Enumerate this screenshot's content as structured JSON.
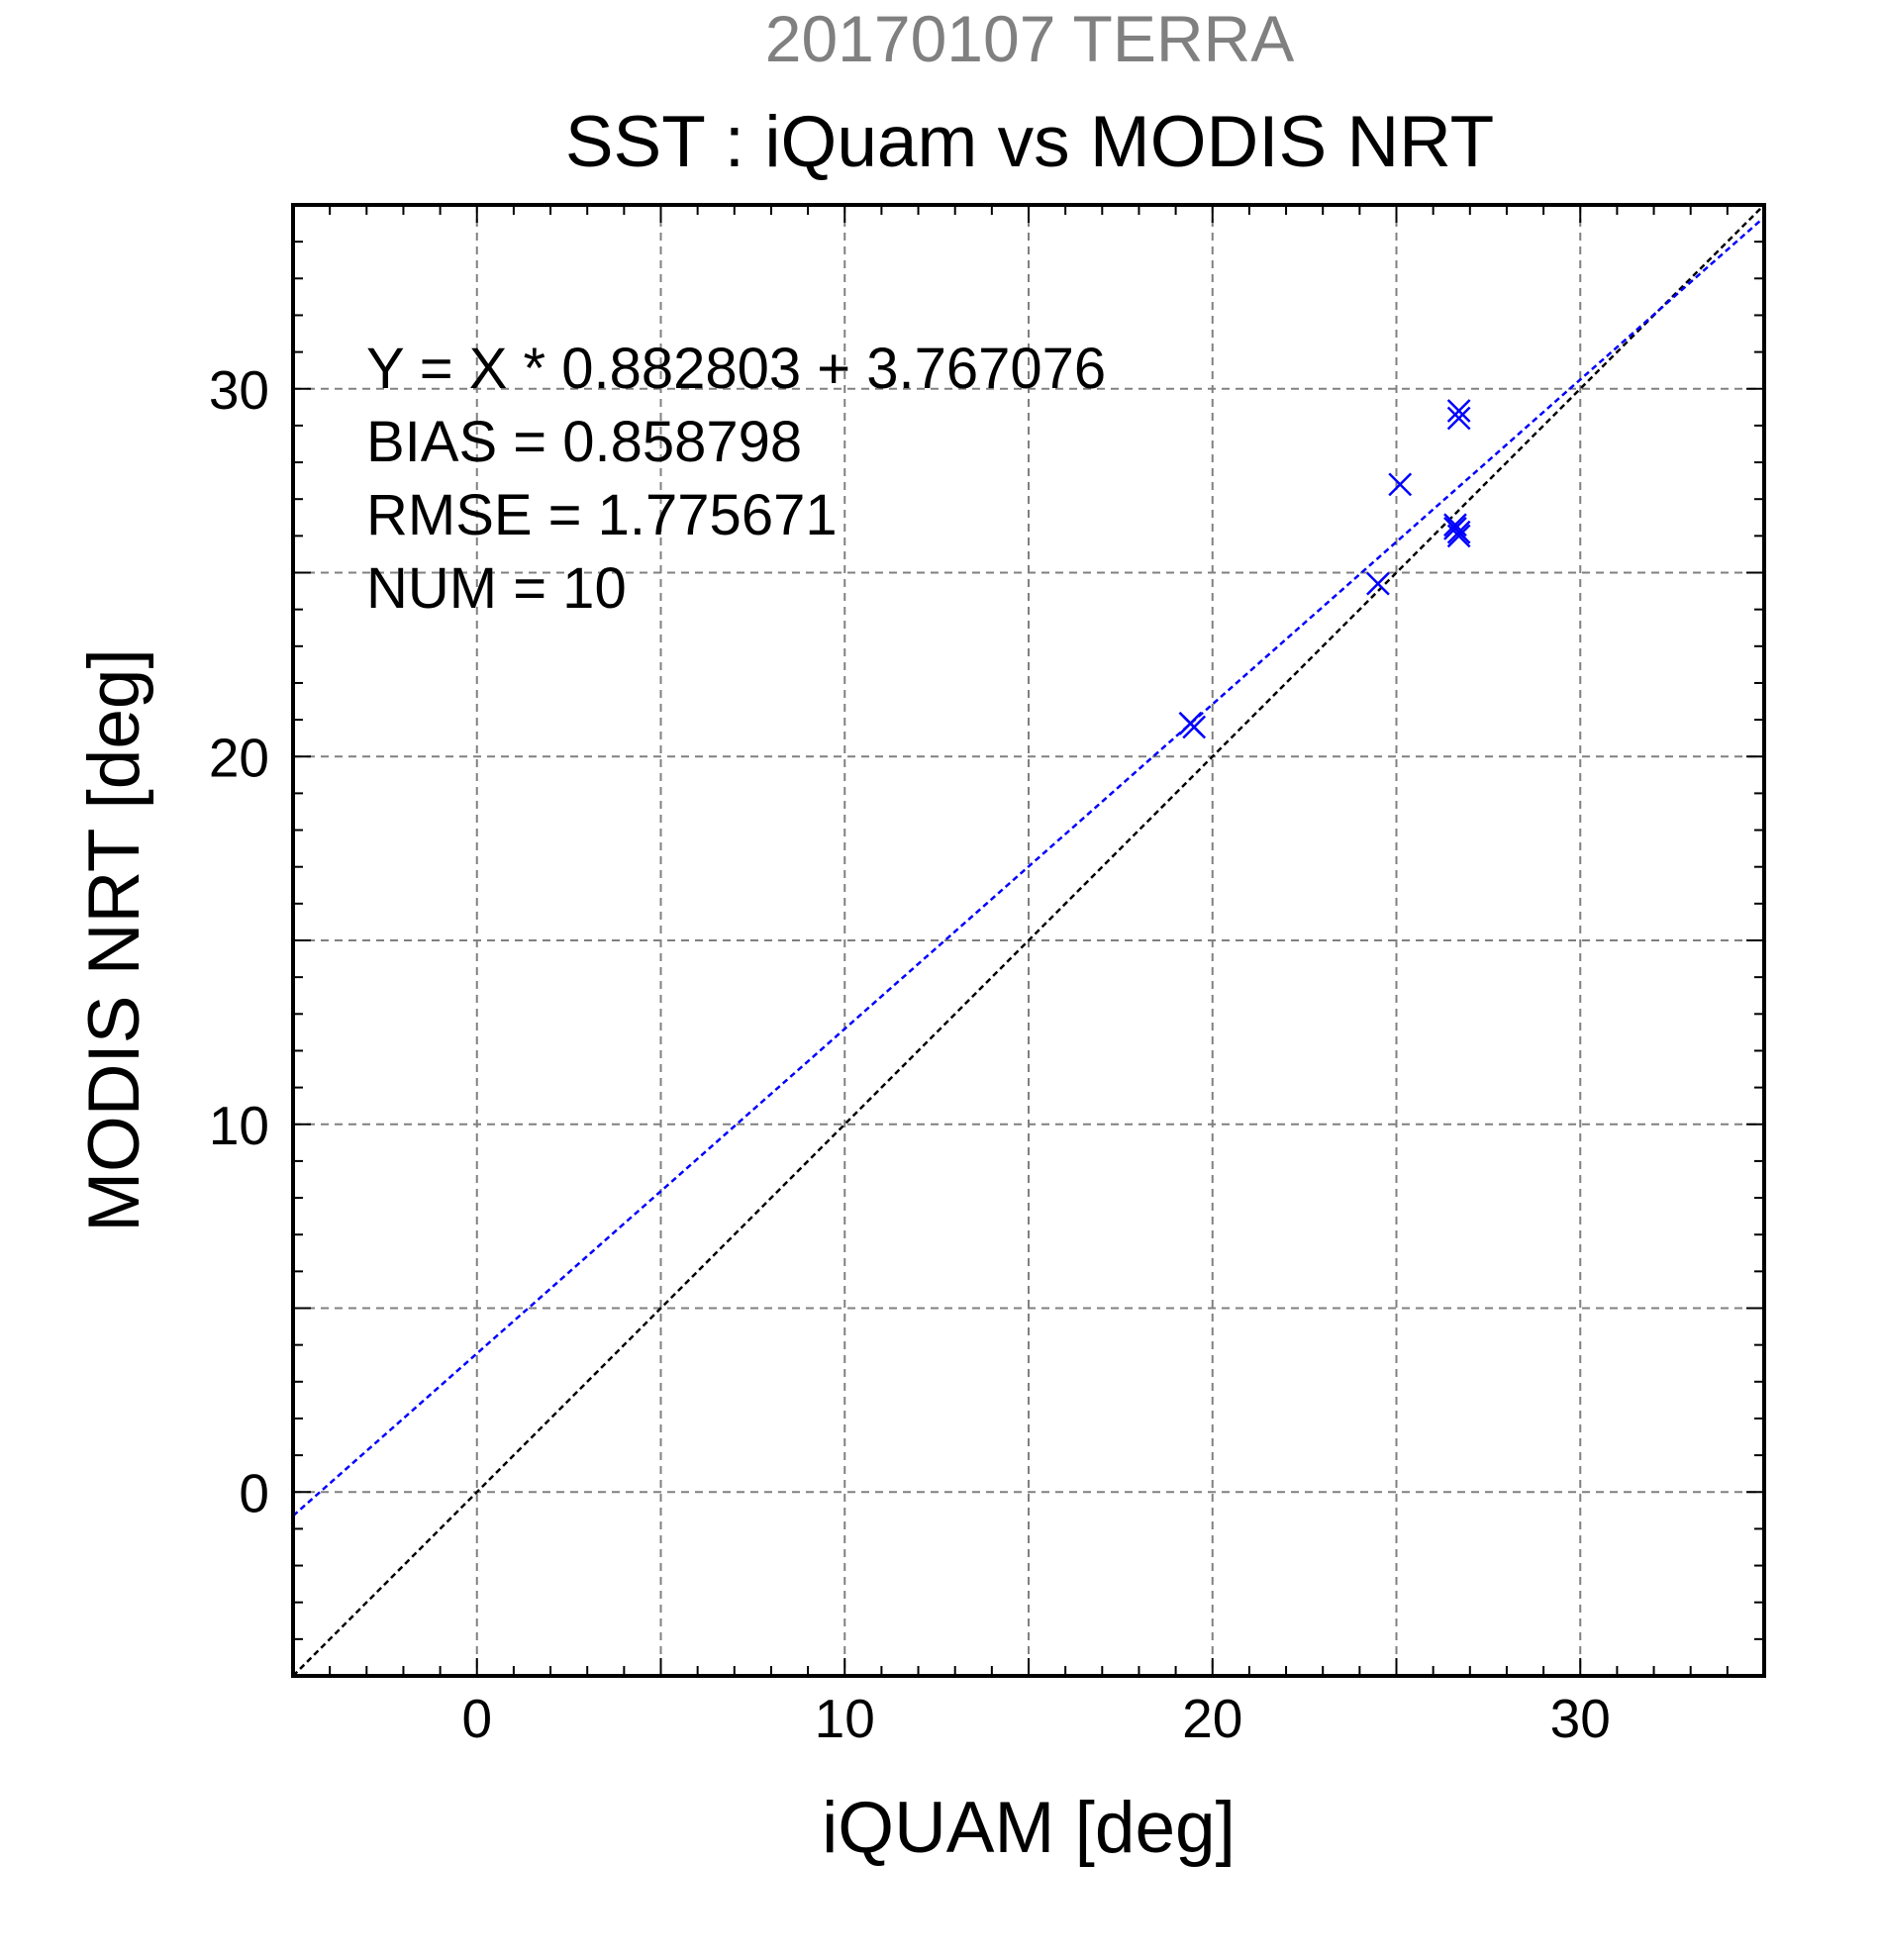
{
  "chart_data": {
    "type": "scatter",
    "supertitle": "20170107 TERRA",
    "title": "SST : iQuam vs MODIS NRT",
    "xlabel": "iQUAM [deg]",
    "ylabel": "MODIS NRT [deg]",
    "xlim": [
      -5,
      35
    ],
    "ylim": [
      -5,
      35
    ],
    "xticks": [
      0,
      10,
      20,
      30
    ],
    "yticks": [
      0,
      10,
      20,
      30
    ],
    "grid": true,
    "grid_step": 5,
    "stats": {
      "equation": "Y = X * 0.882803 + 3.767076",
      "bias": "BIAS = 0.858798",
      "rmse": "RMSE = 1.775671",
      "num": "NUM = 10"
    },
    "fit": {
      "slope": 0.882803,
      "intercept": 3.767076
    },
    "points": [
      {
        "x": 19.4,
        "y": 20.9
      },
      {
        "x": 19.5,
        "y": 20.8
      },
      {
        "x": 24.5,
        "y": 24.7
      },
      {
        "x": 25.1,
        "y": 27.4
      },
      {
        "x": 26.6,
        "y": 26.2
      },
      {
        "x": 26.7,
        "y": 26.0
      },
      {
        "x": 26.7,
        "y": 26.1
      },
      {
        "x": 26.6,
        "y": 26.3
      },
      {
        "x": 26.7,
        "y": 29.2
      },
      {
        "x": 26.7,
        "y": 29.4
      }
    ],
    "colors": {
      "title_gray": "#808080",
      "points": "#0000ff",
      "fit_line": "#0000ff",
      "identity_line": "#000000",
      "grid": "#808080"
    }
  }
}
